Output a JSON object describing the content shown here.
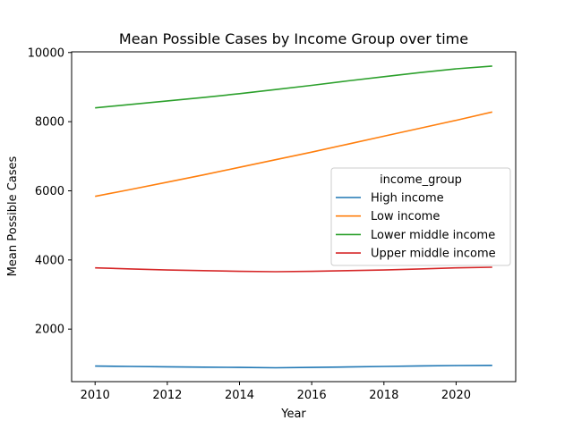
{
  "chart_data": {
    "type": "line",
    "title": "Mean Possible Cases by Income Group over time",
    "xlabel": "Year",
    "ylabel": "Mean Possible Cases",
    "xlim": [
      2009.35,
      2021.65
    ],
    "ylim": [
      480,
      10020
    ],
    "xticks": [
      2010,
      2012,
      2014,
      2016,
      2018,
      2020
    ],
    "yticks": [
      2000,
      4000,
      6000,
      8000,
      10000
    ],
    "x": [
      2010,
      2011,
      2012,
      2013,
      2014,
      2015,
      2016,
      2017,
      2018,
      2019,
      2020,
      2021
    ],
    "legend_title": "income_group",
    "legend_position": "center-right",
    "grid": false,
    "series": [
      {
        "name": "High income",
        "color": "#1f77b4",
        "values": [
          930,
          920,
          910,
          900,
          890,
          880,
          890,
          905,
          920,
          935,
          945,
          950
        ]
      },
      {
        "name": "Low income",
        "color": "#ff7f0e",
        "values": [
          5840,
          6040,
          6250,
          6460,
          6680,
          6900,
          7120,
          7350,
          7580,
          7810,
          8040,
          8280
        ]
      },
      {
        "name": "Lower middle income",
        "color": "#2ca02c",
        "values": [
          8400,
          8500,
          8600,
          8700,
          8810,
          8930,
          9050,
          9180,
          9300,
          9420,
          9530,
          9610
        ]
      },
      {
        "name": "Upper middle income",
        "color": "#d62728",
        "values": [
          3770,
          3740,
          3710,
          3690,
          3670,
          3660,
          3670,
          3690,
          3710,
          3740,
          3770,
          3790
        ]
      }
    ]
  }
}
